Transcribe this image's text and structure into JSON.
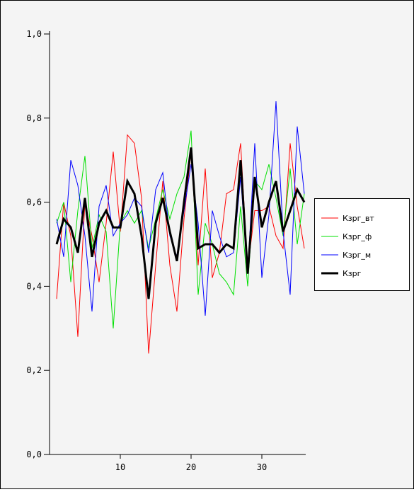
{
  "chart_data": {
    "type": "line",
    "title": "",
    "xlabel": "",
    "ylabel": "",
    "xlim": [
      0,
      36
    ],
    "ylim": [
      0,
      1
    ],
    "x_ticks": [
      10,
      20,
      30
    ],
    "y_ticks": [
      {
        "value": 0.0,
        "label": "0,0"
      },
      {
        "value": 0.2,
        "label": "0,2"
      },
      {
        "value": 0.4,
        "label": "0,4"
      },
      {
        "value": 0.6,
        "label": "0,6"
      },
      {
        "value": 0.8,
        "label": "0,8"
      },
      {
        "value": 1.0,
        "label": "1,0"
      }
    ],
    "grid": false,
    "legend_position": "right",
    "x": [
      1,
      2,
      3,
      4,
      5,
      6,
      7,
      8,
      9,
      10,
      11,
      12,
      13,
      14,
      15,
      16,
      17,
      18,
      19,
      20,
      21,
      22,
      23,
      24,
      25,
      26,
      27,
      28,
      29,
      30,
      31,
      32,
      33,
      34,
      35,
      36
    ],
    "series": [
      {
        "name": "Кзрг_вт",
        "color": "#ff0000",
        "width": 1,
        "values": [
          0.37,
          0.6,
          0.52,
          0.28,
          0.6,
          0.52,
          0.41,
          0.55,
          0.72,
          0.53,
          0.76,
          0.74,
          0.61,
          0.24,
          0.45,
          0.65,
          0.45,
          0.34,
          0.56,
          0.72,
          0.45,
          0.68,
          0.42,
          0.48,
          0.62,
          0.63,
          0.74,
          0.44,
          0.58,
          0.58,
          0.59,
          0.52,
          0.49,
          0.74,
          0.59,
          0.49
        ]
      },
      {
        "name": "Кзрг_ф",
        "color": "#00e000",
        "width": 1,
        "values": [
          0.55,
          0.6,
          0.41,
          0.58,
          0.71,
          0.49,
          0.57,
          0.53,
          0.3,
          0.55,
          0.58,
          0.55,
          0.58,
          0.49,
          0.56,
          0.63,
          0.56,
          0.62,
          0.66,
          0.77,
          0.38,
          0.55,
          0.5,
          0.43,
          0.41,
          0.38,
          0.59,
          0.4,
          0.65,
          0.63,
          0.69,
          0.61,
          0.52,
          0.68,
          0.5,
          0.62
        ]
      },
      {
        "name": "Кзрг_м",
        "color": "#0000ff",
        "width": 1,
        "values": [
          0.56,
          0.47,
          0.7,
          0.64,
          0.52,
          0.34,
          0.59,
          0.64,
          0.52,
          0.55,
          0.57,
          0.61,
          0.59,
          0.48,
          0.63,
          0.67,
          0.52,
          0.47,
          0.58,
          0.69,
          0.55,
          0.33,
          0.58,
          0.52,
          0.47,
          0.48,
          0.66,
          0.43,
          0.74,
          0.42,
          0.57,
          0.84,
          0.53,
          0.38,
          0.78,
          0.62
        ]
      },
      {
        "name": "Кзрг",
        "color": "#000000",
        "width": 3,
        "values": [
          0.5,
          0.56,
          0.54,
          0.48,
          0.61,
          0.47,
          0.55,
          0.58,
          0.54,
          0.54,
          0.65,
          0.62,
          0.52,
          0.37,
          0.55,
          0.61,
          0.53,
          0.46,
          0.6,
          0.73,
          0.49,
          0.5,
          0.5,
          0.48,
          0.5,
          0.49,
          0.7,
          0.43,
          0.66,
          0.54,
          0.6,
          0.65,
          0.53,
          0.58,
          0.63,
          0.6
        ]
      }
    ]
  }
}
